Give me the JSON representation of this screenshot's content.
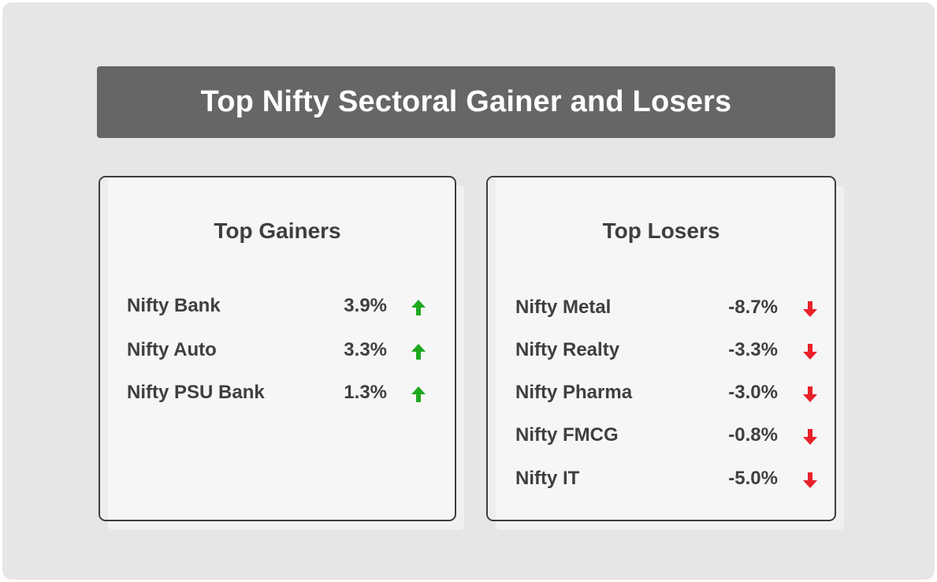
{
  "title": "Top Nifty Sectoral Gainer and Losers",
  "colors": {
    "gain_arrow": "#1fa81f",
    "loss_arrow": "#e8202a",
    "banner_bg": "#666666",
    "text": "#3f3f3f"
  },
  "gainers": {
    "heading": "Top Gainers",
    "items": [
      {
        "name": "Nifty Bank",
        "value": "3.9%",
        "icon": "arrow-up-icon"
      },
      {
        "name": "Nifty Auto",
        "value": "3.3%",
        "icon": "arrow-up-icon"
      },
      {
        "name": "Nifty PSU Bank",
        "value": "1.3%",
        "icon": "arrow-up-icon"
      }
    ]
  },
  "losers": {
    "heading": "Top Losers",
    "items": [
      {
        "name": "Nifty Metal",
        "value": "-8.7%",
        "icon": "arrow-down-icon"
      },
      {
        "name": "Nifty Realty",
        "value": "-3.3%",
        "icon": "arrow-down-icon"
      },
      {
        "name": "Nifty Pharma",
        "value": "-3.0%",
        "icon": "arrow-down-icon"
      },
      {
        "name": "Nifty FMCG",
        "value": "-0.8%",
        "icon": "arrow-down-icon"
      },
      {
        "name": "Nifty IT",
        "value": "-5.0%",
        "icon": "arrow-down-icon"
      }
    ]
  }
}
